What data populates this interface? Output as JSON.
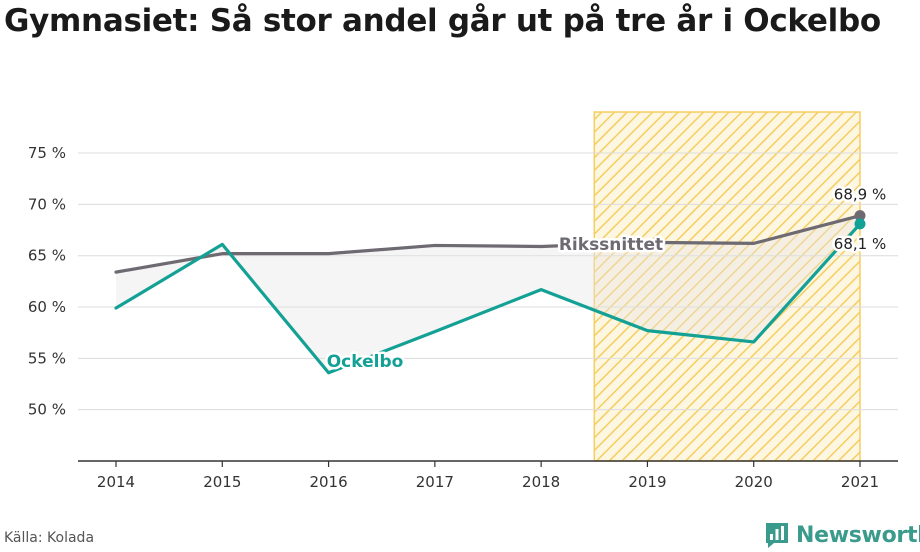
{
  "title": "Gymnasiet: Så stor andel går ut på tre år i Ockelbo",
  "source": "Källa: Kolada",
  "brand": {
    "name": "Newsworthy",
    "icon": "newsworthy-logo-icon",
    "color": "#3a9a8b"
  },
  "chart_data": {
    "type": "line",
    "x": [
      2014,
      2015,
      2016,
      2017,
      2018,
      2019,
      2020,
      2021
    ],
    "ylim": [
      45,
      79
    ],
    "yticks": [
      50,
      55,
      60,
      65,
      70,
      75
    ],
    "ytick_labels": [
      "50 %",
      "55 %",
      "60 %",
      "65 %",
      "70 %",
      "75 %"
    ],
    "grid": true,
    "highlight": {
      "x_from": 2018.5,
      "x_to": 2021,
      "pattern": "diagonal-hatch",
      "color": "#f5cd61"
    },
    "series": [
      {
        "name": "Rikssnittet",
        "color": "#6e6a72",
        "values": [
          63.4,
          65.2,
          65.2,
          66.0,
          65.9,
          66.3,
          66.2,
          68.9
        ],
        "end_label": "68,9 %"
      },
      {
        "name": "Ockelbo",
        "color": "#14a195",
        "values": [
          59.9,
          66.1,
          53.6,
          57.6,
          61.7,
          57.7,
          56.6,
          68.1
        ],
        "end_label": "68,1 %"
      }
    ]
  }
}
